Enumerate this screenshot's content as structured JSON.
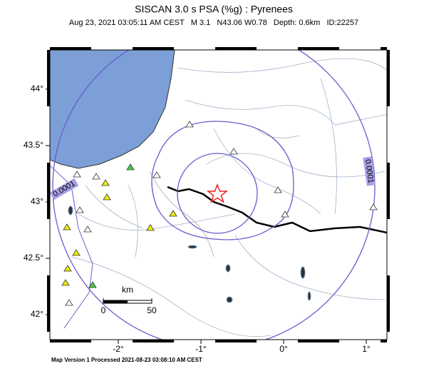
{
  "header": {
    "title": "SISCAN 3.0 s PSA (%g) : Pyrenees",
    "subtitle": "Aug 23, 2021 03:05:11 AM CEST   M 3.1   N43.06 W0.78   Depth: 0.6km   ID:22257"
  },
  "map": {
    "lat_ticks": [
      {
        "value": 44,
        "label": "44°"
      },
      {
        "value": 43.5,
        "label": "43.5°"
      },
      {
        "value": 43,
        "label": "43°"
      },
      {
        "value": 42.5,
        "label": "42.5°"
      },
      {
        "value": 42,
        "label": "42°"
      }
    ],
    "lon_ticks": [
      {
        "value": -2,
        "label": "-2°"
      },
      {
        "value": -1,
        "label": "-1°"
      },
      {
        "value": 0,
        "label": "0°"
      },
      {
        "value": 1,
        "label": "1°"
      }
    ],
    "contour_labels": [
      "0.0001",
      "0.0001"
    ],
    "scale_bar": {
      "unit": "km",
      "ticks": [
        0,
        50
      ]
    }
  },
  "footer": "Map Version 1 Processed 2021-08-23 03:08:10 AM CEST"
}
